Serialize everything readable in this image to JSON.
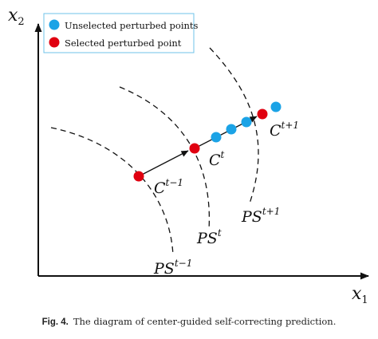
{
  "axes": {
    "x_label_base": "x",
    "x_label_sub": "1",
    "y_label_base": "x",
    "y_label_sub": "2"
  },
  "legend": {
    "items": [
      {
        "label": "Unselected perturbed points",
        "color": "#1ba3e6"
      },
      {
        "label": "Selected perturbed point",
        "color": "#e00010"
      }
    ]
  },
  "centers": [
    {
      "base": "C",
      "sup": "t−1"
    },
    {
      "base": "C",
      "sup": "t"
    },
    {
      "base": "C",
      "sup": "t+1"
    }
  ],
  "pareto_sets": [
    {
      "base": "PS",
      "sup": "t−1"
    },
    {
      "base": "PS",
      "sup": "t"
    },
    {
      "base": "PS",
      "sup": "t+1"
    }
  ],
  "caption": {
    "figure": "Fig. 4.",
    "text": "The diagram of center-guided self-correcting prediction."
  },
  "colors": {
    "selected": "#e00010",
    "unselected": "#1ba3e6",
    "ink": "#111111"
  }
}
